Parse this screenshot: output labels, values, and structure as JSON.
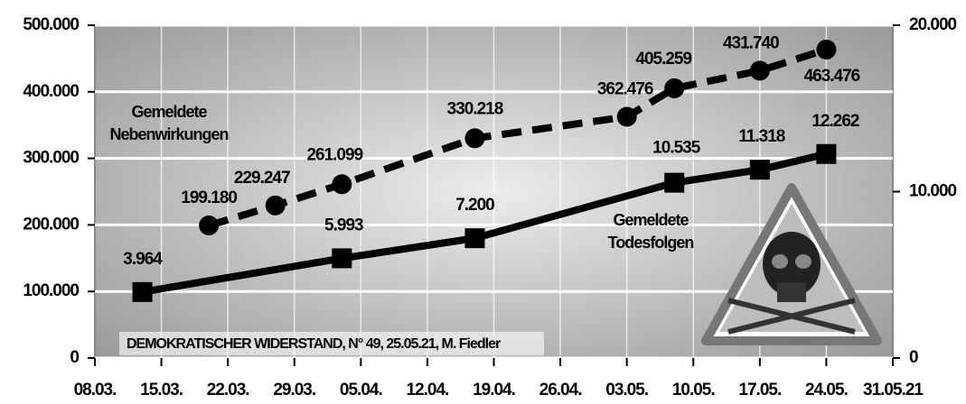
{
  "chart_data": {
    "type": "line",
    "annotations": [
      "DEMOKRATISCHER WIDERSTAND, N° 49, 25.05.21, M. Fiedler"
    ],
    "xlim": [
      0,
      84
    ],
    "xticks": [
      {
        "value": 0,
        "label": "08.03."
      },
      {
        "value": 7,
        "label": "15.03."
      },
      {
        "value": 14,
        "label": "22.03."
      },
      {
        "value": 21,
        "label": "29.03."
      },
      {
        "value": 28,
        "label": "05.04."
      },
      {
        "value": 35,
        "label": "12.04."
      },
      {
        "value": 42,
        "label": "19.04."
      },
      {
        "value": 49,
        "label": "26.04."
      },
      {
        "value": 56,
        "label": "03.05."
      },
      {
        "value": 63,
        "label": "10.05."
      },
      {
        "value": 70,
        "label": "17.05."
      },
      {
        "value": 77,
        "label": "24.05."
      },
      {
        "value": 84,
        "label": "31.05.21"
      }
    ],
    "ylim": [
      0,
      500000
    ],
    "yticks": [
      0,
      {
        "value": 100000,
        "label": "100.000"
      },
      {
        "value": 200000,
        "label": "200.000"
      },
      {
        "value": 300000,
        "label": "300.000"
      },
      {
        "value": 400000,
        "label": "400.000"
      },
      {
        "value": 500000,
        "label": "500.000"
      }
    ],
    "y2lim": [
      0,
      20000
    ],
    "y2ticks": [
      0,
      {
        "value": 10000,
        "label": "10.000"
      },
      {
        "value": 20000,
        "label": "20.000"
      }
    ],
    "grid": true,
    "series": [
      {
        "name": "Gemeldete Nebenwirkungen",
        "color": "#000000",
        "dashed": true,
        "marker": "circle",
        "x": [
          12,
          19,
          26,
          40,
          56,
          61,
          70,
          77
        ],
        "values": [
          199180,
          229247,
          261099,
          330218,
          362476,
          405259,
          431740,
          463476
        ],
        "value_labels": [
          "199.180",
          "229.247",
          "261.099",
          "330.218",
          "362.476",
          "405.259",
          "431.740",
          "463.476"
        ]
      },
      {
        "name": "Gemeldete Todesfolgen",
        "color": "#000000",
        "dashed": false,
        "marker": "square",
        "axis": "y2",
        "x": [
          5,
          26,
          40,
          61,
          70,
          77
        ],
        "values": [
          3964,
          5993,
          7200,
          10535,
          11318,
          12262
        ],
        "value_labels": [
          "3.964",
          "5.993",
          "7.200",
          "10.535",
          "11.318",
          "12.262"
        ]
      }
    ]
  }
}
